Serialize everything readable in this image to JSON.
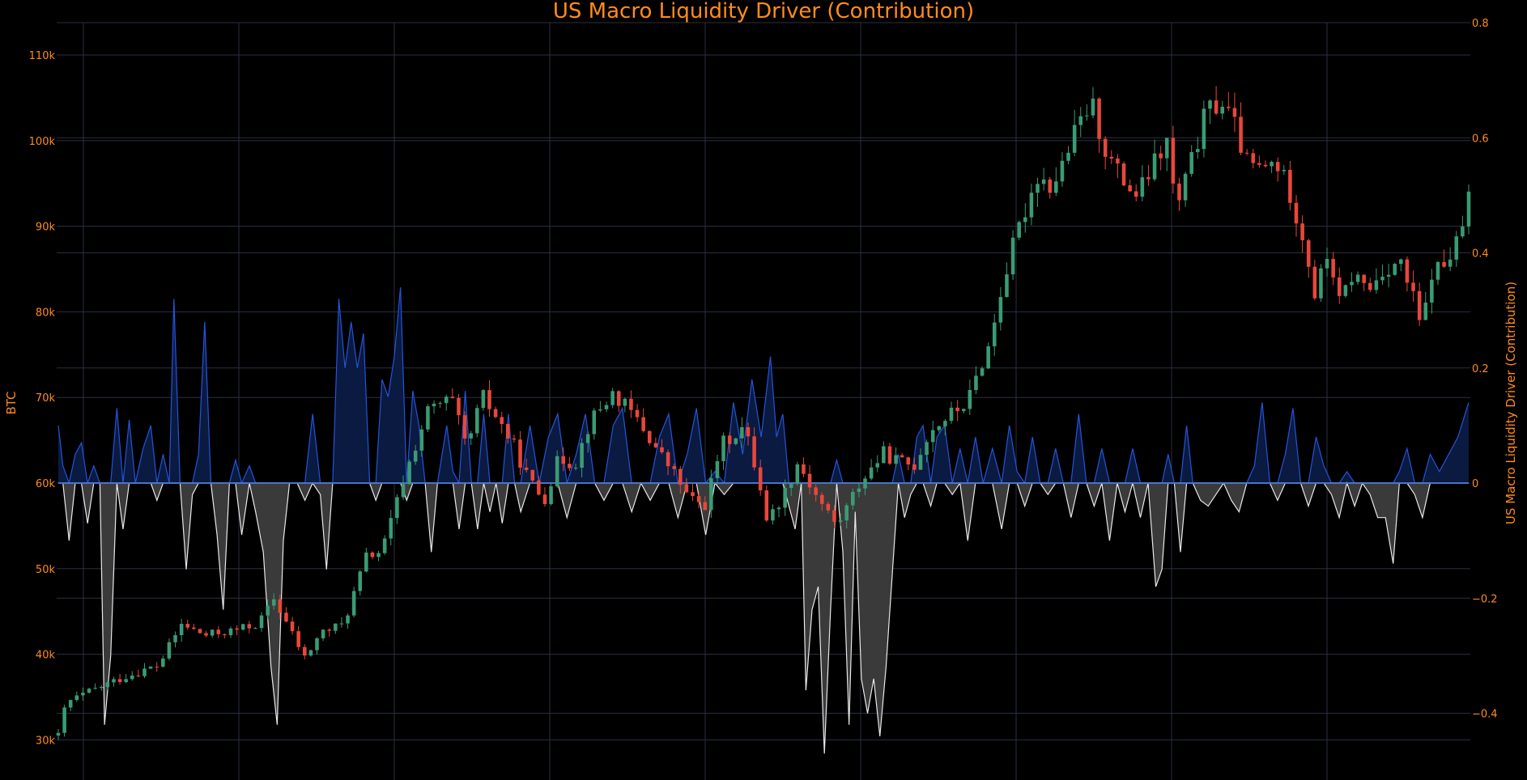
{
  "chart_data": {
    "type": "candlestick",
    "title": "US Macro Liquidity Driver (Contribution)",
    "y_left": {
      "label": "BTC",
      "range": [
        28000,
        115000
      ],
      "ticks": [
        30000,
        40000,
        50000,
        60000,
        70000,
        80000,
        90000,
        100000,
        110000
      ],
      "tick_labels": [
        "30k",
        "40k",
        "50k",
        "60k",
        "70k",
        "80k",
        "90k",
        "100k",
        "110k"
      ]
    },
    "y_right": {
      "label": "US Macro Liquidity Driver (Contribution)",
      "range": [
        -0.48,
        0.8
      ],
      "ticks": [
        -0.4,
        -0.2,
        0,
        0.2,
        0.4,
        0.6,
        0.8
      ],
      "tick_labels": [
        "−0.4",
        "−0.2",
        "0",
        "0.2",
        "0.4",
        "0.6",
        "0.8"
      ]
    },
    "grid": true,
    "colors": {
      "background": "#000000",
      "text": "#ff8c1a",
      "grid": "#2a3040",
      "candle_up": "#3a9b74",
      "candle_down": "#e8473b",
      "positive_line": "#2255dd",
      "positive_fill": "#0b1a40",
      "negative_line": "#e8e8e8",
      "negative_fill": "#3a3a3a",
      "zero_line": "#4a74c8"
    },
    "btc_price_path": [
      [
        0,
        30500
      ],
      [
        5,
        34300
      ],
      [
        15,
        35200
      ],
      [
        30,
        36400
      ],
      [
        45,
        37500
      ],
      [
        65,
        38700
      ],
      [
        80,
        43500
      ],
      [
        95,
        42200
      ],
      [
        115,
        42800
      ],
      [
        130,
        43600
      ],
      [
        140,
        46500
      ],
      [
        150,
        43000
      ],
      [
        160,
        39500
      ],
      [
        170,
        42500
      ],
      [
        185,
        43500
      ],
      [
        200,
        51500
      ],
      [
        210,
        52000
      ],
      [
        225,
        61000
      ],
      [
        240,
        68500
      ],
      [
        255,
        69800
      ],
      [
        265,
        64000
      ],
      [
        275,
        70200
      ],
      [
        285,
        67500
      ],
      [
        295,
        64500
      ],
      [
        305,
        60500
      ],
      [
        315,
        58000
      ],
      [
        325,
        63000
      ],
      [
        335,
        62200
      ],
      [
        345,
        67200
      ],
      [
        360,
        70500
      ],
      [
        375,
        67500
      ],
      [
        390,
        63500
      ],
      [
        400,
        61000
      ],
      [
        410,
        58000
      ],
      [
        420,
        57500
      ],
      [
        430,
        64500
      ],
      [
        445,
        66500
      ],
      [
        455,
        60000
      ],
      [
        460,
        55500
      ],
      [
        470,
        58500
      ],
      [
        480,
        62500
      ],
      [
        490,
        59000
      ],
      [
        505,
        55000
      ],
      [
        520,
        60000
      ],
      [
        535,
        63500
      ],
      [
        545,
        62500
      ],
      [
        555,
        62000
      ],
      [
        565,
        66000
      ],
      [
        575,
        67500
      ],
      [
        590,
        69500
      ],
      [
        600,
        74500
      ],
      [
        605,
        76500
      ],
      [
        610,
        81500
      ],
      [
        620,
        88000
      ],
      [
        635,
        96000
      ],
      [
        645,
        94500
      ],
      [
        660,
        101000
      ],
      [
        670,
        104500
      ],
      [
        680,
        98500
      ],
      [
        690,
        95500
      ],
      [
        700,
        93500
      ],
      [
        710,
        97000
      ],
      [
        720,
        100000
      ],
      [
        725,
        91500
      ],
      [
        735,
        97500
      ],
      [
        745,
        103500
      ],
      [
        755,
        104500
      ],
      [
        765,
        101000
      ],
      [
        770,
        97500
      ],
      [
        780,
        96500
      ],
      [
        790,
        97500
      ],
      [
        800,
        93500
      ],
      [
        810,
        87000
      ],
      [
        815,
        82000
      ],
      [
        825,
        87500
      ],
      [
        830,
        80500
      ],
      [
        840,
        84500
      ],
      [
        850,
        82500
      ],
      [
        860,
        85000
      ],
      [
        870,
        86000
      ],
      [
        880,
        81000
      ],
      [
        885,
        77500
      ],
      [
        890,
        84500
      ],
      [
        900,
        85500
      ],
      [
        910,
        89000
      ],
      [
        915,
        93500
      ]
    ],
    "candle_count": 230,
    "liquidity_contribution_path": [
      [
        0,
        0.1
      ],
      [
        3,
        0.03
      ],
      [
        7,
        -0.1
      ],
      [
        11,
        0.05
      ],
      [
        15,
        0.07
      ],
      [
        19,
        -0.07
      ],
      [
        23,
        0.03
      ],
      [
        27,
        0.0
      ],
      [
        30,
        -0.42
      ],
      [
        34,
        -0.3
      ],
      [
        38,
        0.13
      ],
      [
        42,
        -0.08
      ],
      [
        46,
        0.11
      ],
      [
        50,
        0.0
      ],
      [
        55,
        0.06
      ],
      [
        60,
        0.1
      ],
      [
        64,
        -0.03
      ],
      [
        68,
        0.05
      ],
      [
        72,
        0.0
      ],
      [
        75,
        0.32
      ],
      [
        79,
        0.0
      ],
      [
        83,
        -0.15
      ],
      [
        87,
        -0.02
      ],
      [
        91,
        0.05
      ],
      [
        95,
        0.28
      ],
      [
        99,
        0.0
      ],
      [
        103,
        -0.09
      ],
      [
        107,
        -0.22
      ],
      [
        111,
        0.0
      ],
      [
        115,
        0.04
      ],
      [
        119,
        -0.09
      ],
      [
        124,
        0.03
      ],
      [
        128,
        -0.05
      ],
      [
        133,
        -0.12
      ],
      [
        138,
        -0.32
      ],
      [
        142,
        -0.42
      ],
      [
        146,
        -0.1
      ],
      [
        150,
        0.0
      ],
      [
        155,
        0.0
      ],
      [
        160,
        -0.03
      ],
      [
        165,
        0.12
      ],
      [
        170,
        -0.02
      ],
      [
        174,
        -0.15
      ],
      [
        178,
        0.0
      ],
      [
        182,
        0.32
      ],
      [
        186,
        0.2
      ],
      [
        190,
        0.28
      ],
      [
        194,
        0.2
      ],
      [
        198,
        0.26
      ],
      [
        202,
        0.0
      ],
      [
        206,
        -0.03
      ],
      [
        210,
        0.18
      ],
      [
        214,
        0.15
      ],
      [
        218,
        0.22
      ],
      [
        222,
        0.34
      ],
      [
        226,
        -0.03
      ],
      [
        230,
        0.16
      ],
      [
        234,
        0.1
      ],
      [
        238,
        0.0
      ],
      [
        242,
        -0.12
      ],
      [
        246,
        0.0
      ],
      [
        252,
        0.1
      ],
      [
        256,
        0.02
      ],
      [
        260,
        -0.08
      ],
      [
        264,
        0.16
      ],
      [
        268,
        0.0
      ],
      [
        272,
        -0.08
      ],
      [
        276,
        0.12
      ],
      [
        280,
        -0.05
      ],
      [
        284,
        0.0
      ],
      [
        288,
        -0.07
      ],
      [
        292,
        0.12
      ],
      [
        296,
        0.0
      ],
      [
        300,
        -0.05
      ],
      [
        306,
        0.1
      ],
      [
        312,
        0.0
      ],
      [
        318,
        0.08
      ],
      [
        324,
        0.12
      ],
      [
        330,
        -0.06
      ],
      [
        336,
        0.05
      ],
      [
        342,
        0.12
      ],
      [
        348,
        0.0
      ],
      [
        354,
        -0.03
      ],
      [
        360,
        0.1
      ],
      [
        366,
        0.13
      ],
      [
        372,
        -0.05
      ],
      [
        378,
        0.0
      ],
      [
        384,
        -0.03
      ],
      [
        390,
        0.08
      ],
      [
        396,
        0.12
      ],
      [
        402,
        -0.06
      ],
      [
        408,
        0.05
      ],
      [
        414,
        0.13
      ],
      [
        420,
        -0.09
      ],
      [
        426,
        0.02
      ],
      [
        432,
        -0.02
      ],
      [
        438,
        0.14
      ],
      [
        444,
        0.05
      ],
      [
        450,
        0.18
      ],
      [
        456,
        0.08
      ],
      [
        462,
        0.22
      ],
      [
        466,
        0.08
      ],
      [
        470,
        0.12
      ],
      [
        474,
        -0.04
      ],
      [
        478,
        -0.08
      ],
      [
        482,
        0.0
      ],
      [
        485,
        -0.36
      ],
      [
        489,
        -0.22
      ],
      [
        493,
        -0.18
      ],
      [
        497,
        -0.47
      ],
      [
        501,
        -0.22
      ],
      [
        505,
        0.04
      ],
      [
        509,
        -0.12
      ],
      [
        513,
        -0.42
      ],
      [
        517,
        -0.05
      ],
      [
        521,
        -0.34
      ],
      [
        525,
        -0.4
      ],
      [
        529,
        -0.34
      ],
      [
        533,
        -0.44
      ],
      [
        537,
        -0.32
      ],
      [
        541,
        -0.16
      ],
      [
        545,
        0.05
      ],
      [
        549,
        -0.06
      ],
      [
        553,
        -0.02
      ],
      [
        557,
        0.08
      ],
      [
        561,
        0.1
      ],
      [
        566,
        -0.04
      ],
      [
        570,
        0.08
      ],
      [
        575,
        0.1
      ],
      [
        580,
        -0.02
      ],
      [
        585,
        0.06
      ],
      [
        590,
        -0.1
      ],
      [
        595,
        0.08
      ],
      [
        600,
        0.0
      ],
      [
        606,
        0.06
      ],
      [
        612,
        -0.08
      ],
      [
        617,
        0.1
      ],
      [
        622,
        0.02
      ],
      [
        627,
        -0.04
      ],
      [
        632,
        0.08
      ],
      [
        637,
        0.0
      ],
      [
        642,
        -0.02
      ],
      [
        647,
        0.06
      ],
      [
        652,
        0.0
      ],
      [
        657,
        -0.06
      ],
      [
        662,
        0.12
      ],
      [
        667,
        0.0
      ],
      [
        672,
        -0.04
      ],
      [
        677,
        0.06
      ],
      [
        682,
        -0.1
      ],
      [
        687,
        0.0
      ],
      [
        692,
        -0.05
      ],
      [
        697,
        0.06
      ],
      [
        702,
        -0.06
      ],
      [
        707,
        0.0
      ],
      [
        712,
        -0.18
      ],
      [
        716,
        -0.15
      ],
      [
        720,
        0.05
      ],
      [
        724,
        0.0
      ],
      [
        728,
        -0.12
      ],
      [
        732,
        0.1
      ],
      [
        736,
        0.0
      ],
      [
        741,
        -0.03
      ],
      [
        746,
        -0.04
      ],
      [
        751,
        -0.02
      ],
      [
        756,
        0.0
      ],
      [
        761,
        -0.03
      ],
      [
        766,
        -0.05
      ],
      [
        771,
        0.0
      ],
      [
        776,
        0.03
      ],
      [
        781,
        0.14
      ],
      [
        786,
        0.0
      ],
      [
        791,
        -0.03
      ],
      [
        796,
        0.05
      ],
      [
        801,
        0.13
      ],
      [
        806,
        0.0
      ],
      [
        811,
        -0.04
      ],
      [
        816,
        0.08
      ],
      [
        821,
        0.03
      ],
      [
        826,
        -0.02
      ],
      [
        831,
        -0.06
      ],
      [
        836,
        0.02
      ],
      [
        841,
        -0.04
      ],
      [
        846,
        0.0
      ],
      [
        851,
        -0.02
      ],
      [
        856,
        -0.06
      ],
      [
        861,
        -0.06
      ],
      [
        866,
        -0.14
      ],
      [
        870,
        0.02
      ],
      [
        875,
        0.06
      ],
      [
        880,
        -0.02
      ],
      [
        885,
        -0.06
      ],
      [
        890,
        0.05
      ],
      [
        896,
        0.02
      ],
      [
        902,
        0.05
      ],
      [
        908,
        0.08
      ],
      [
        915,
        0.14
      ]
    ]
  }
}
